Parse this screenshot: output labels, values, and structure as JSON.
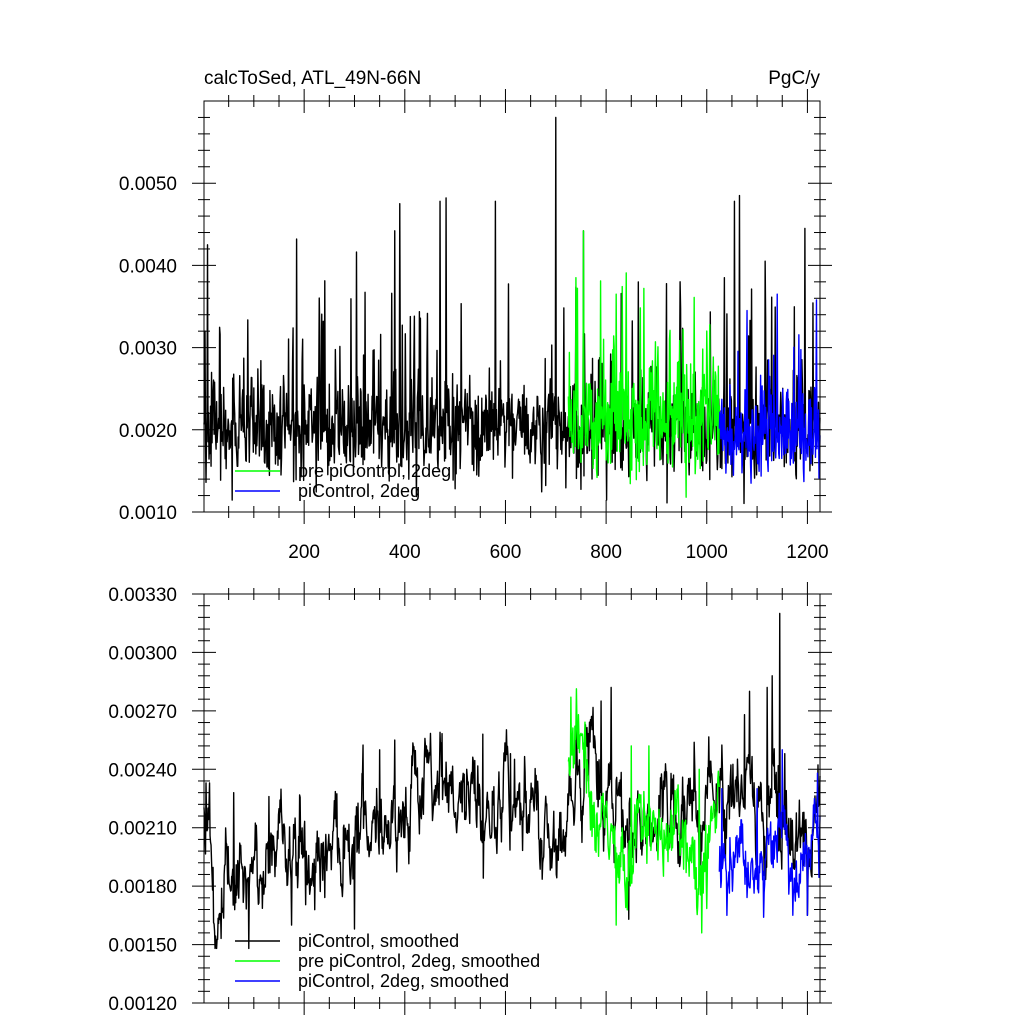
{
  "figure": {
    "title_left": "calcToSed, ATL_49N-66N",
    "title_right": "PgC/y"
  },
  "chart_data": [
    {
      "type": "line",
      "title": "calcToSed, ATL_49N-66N",
      "units": "PgC/y",
      "xlim": [
        1,
        1225
      ],
      "ylim": [
        0.001,
        0.006
      ],
      "x_ticks": [
        200,
        400,
        600,
        800,
        1000,
        1200
      ],
      "x_tick_labels": [
        "200",
        "400",
        "600",
        "800",
        "1000",
        "1200"
      ],
      "y_ticks": [
        0.001,
        0.002,
        0.003,
        0.004,
        0.005
      ],
      "y_tick_labels": [
        "0.0010",
        "0.0020",
        "0.0030",
        "0.0040",
        "0.0050"
      ],
      "legend": {
        "position": "lower-left",
        "entries": [
          {
            "label": "pre piControl, 2deg",
            "color": "#00ff00"
          },
          {
            "label": "piControl, 2deg",
            "color": "#0000ff"
          }
        ]
      },
      "series": [
        {
          "color": "#000000",
          "x_start": 1,
          "x_end": 1225,
          "mean": 0.002,
          "sd": 0.0004,
          "trend": 6e-05,
          "spike_prob": 0.06,
          "spike_amp": 0.0018,
          "min": 0.00105,
          "peaks": [
            [
              3,
              0.0032
            ],
            [
              8,
              0.00425
            ],
            [
              185,
              0.00432
            ],
            [
              380,
              0.00442
            ],
            [
              390,
              0.00475
            ],
            [
              470,
              0.00478
            ],
            [
              482,
              0.00482
            ],
            [
              580,
              0.00478
            ],
            [
              700,
              0.0058
            ],
            [
              755,
              0.00442
            ],
            [
              1055,
              0.00478
            ],
            [
              1065,
              0.00485
            ],
            [
              1195,
              0.00445
            ]
          ]
        },
        {
          "color": "#00ff00",
          "x_start": 725,
          "x_end": 1025,
          "mean": 0.00215,
          "sd": 0.00045,
          "trend": 0.0,
          "spike_prob": 0.07,
          "spike_amp": 0.0013,
          "min": 0.00118,
          "peaks": [
            [
              740,
              0.00385
            ],
            [
              755,
              0.00442
            ],
            [
              820,
              0.00365
            ],
            [
              875,
              0.00372
            ]
          ]
        },
        {
          "color": "#0000ff",
          "x_start": 1025,
          "x_end": 1225,
          "mean": 0.00195,
          "sd": 0.00038,
          "trend": 0.0,
          "spike_prob": 0.05,
          "spike_amp": 0.0011,
          "min": 0.00135,
          "peaks": [
            [
              1080,
              0.00345
            ],
            [
              1140,
              0.00365
            ],
            [
              1218,
              0.00358
            ]
          ]
        }
      ]
    },
    {
      "type": "line",
      "xlim": [
        1,
        1225
      ],
      "ylim": [
        0.0012,
        0.0033
      ],
      "x_ticks": [
        200,
        400,
        600,
        800,
        1000,
        1200
      ],
      "y_ticks": [
        0.0012,
        0.0015,
        0.0018,
        0.0021,
        0.0024,
        0.0027,
        0.003,
        0.0033
      ],
      "y_tick_labels": [
        "0.00120",
        "0.00150",
        "0.00180",
        "0.00210",
        "0.00240",
        "0.00270",
        "0.00300",
        "0.00330"
      ],
      "legend": {
        "position": "lower-left",
        "entries": [
          {
            "label": "piControl, smoothed",
            "color": "#000000"
          },
          {
            "label": "pre piControl, 2deg, smoothed",
            "color": "#00ff00"
          },
          {
            "label": "piControl, 2deg, smoothed",
            "color": "#0000ff"
          }
        ]
      },
      "series": [
        {
          "color": "#000000",
          "anchors": [
            [
              1,
              0.0022
            ],
            [
              10,
              0.0023
            ],
            [
              25,
              0.0016
            ],
            [
              40,
              0.00155
            ],
            [
              60,
              0.002
            ],
            [
              80,
              0.00165
            ],
            [
              100,
              0.0018
            ],
            [
              130,
              0.00195
            ],
            [
              160,
              0.00205
            ],
            [
              200,
              0.00195
            ],
            [
              240,
              0.002
            ],
            [
              300,
              0.00215
            ],
            [
              360,
              0.0022
            ],
            [
              400,
              0.00225
            ],
            [
              440,
              0.0022
            ],
            [
              480,
              0.00235
            ],
            [
              520,
              0.0023
            ],
            [
              560,
              0.0022
            ],
            [
              600,
              0.0023
            ],
            [
              640,
              0.00215
            ],
            [
              700,
              0.0021
            ],
            [
              740,
              0.0023
            ],
            [
              770,
              0.00245
            ],
            [
              800,
              0.00225
            ],
            [
              850,
              0.0022
            ],
            [
              900,
              0.00215
            ],
            [
              950,
              0.0021
            ],
            [
              1000,
              0.0022
            ],
            [
              1050,
              0.00225
            ],
            [
              1100,
              0.0023
            ],
            [
              1150,
              0.00215
            ],
            [
              1200,
              0.00195
            ],
            [
              1225,
              0.00205
            ]
          ],
          "noise": 0.00022,
          "min": 0.00148,
          "peaks": [
            [
              5,
              0.00233
            ],
            [
              60,
              0.00228
            ],
            [
              130,
              0.00226
            ],
            [
              350,
              0.0025
            ],
            [
              380,
              0.00255
            ],
            [
              470,
              0.00259
            ],
            [
              555,
              0.00258
            ],
            [
              610,
              0.00248
            ],
            [
              790,
              0.00275
            ],
            [
              810,
              0.00282
            ],
            [
              1075,
              0.00268
            ],
            [
              1085,
              0.0028
            ],
            [
              1120,
              0.00282
            ],
            [
              1130,
              0.00288
            ],
            [
              1145,
              0.0032
            ],
            [
              1155,
              0.00248
            ]
          ],
          "troughs": [
            [
              25,
              0.0015
            ],
            [
              90,
              0.00148
            ],
            [
              175,
              0.0016
            ],
            [
              300,
              0.00158
            ],
            [
              845,
              0.00163
            ],
            [
              1200,
              0.00165
            ]
          ]
        },
        {
          "color": "#00ff00",
          "anchors": [
            [
              725,
              0.0025
            ],
            [
              740,
              0.00265
            ],
            [
              760,
              0.0023
            ],
            [
              790,
              0.00215
            ],
            [
              820,
              0.002
            ],
            [
              850,
              0.00195
            ],
            [
              880,
              0.00215
            ],
            [
              910,
              0.002
            ],
            [
              940,
              0.0021
            ],
            [
              970,
              0.00195
            ],
            [
              1000,
              0.0019
            ],
            [
              1025,
              0.002
            ]
          ],
          "noise": 0.0002,
          "min": 0.00155,
          "peaks": [
            [
              730,
              0.00277
            ],
            [
              745,
              0.00268
            ],
            [
              850,
              0.00252
            ],
            [
              885,
              0.00252
            ],
            [
              985,
              0.0024
            ]
          ],
          "troughs": [
            [
              820,
              0.0016
            ],
            [
              990,
              0.00156
            ]
          ]
        },
        {
          "color": "#0000ff",
          "anchors": [
            [
              1025,
              0.00195
            ],
            [
              1060,
              0.0019
            ],
            [
              1100,
              0.00195
            ],
            [
              1140,
              0.002
            ],
            [
              1180,
              0.0019
            ],
            [
              1225,
              0.00205
            ]
          ],
          "noise": 0.00018,
          "min": 0.00162,
          "peaks": [
            [
              1030,
              0.0023
            ],
            [
              1100,
              0.0023
            ],
            [
              1150,
              0.0025
            ],
            [
              1220,
              0.00238
            ]
          ],
          "troughs": [
            [
              1040,
              0.00165
            ],
            [
              1200,
              0.00165
            ]
          ]
        }
      ]
    }
  ]
}
